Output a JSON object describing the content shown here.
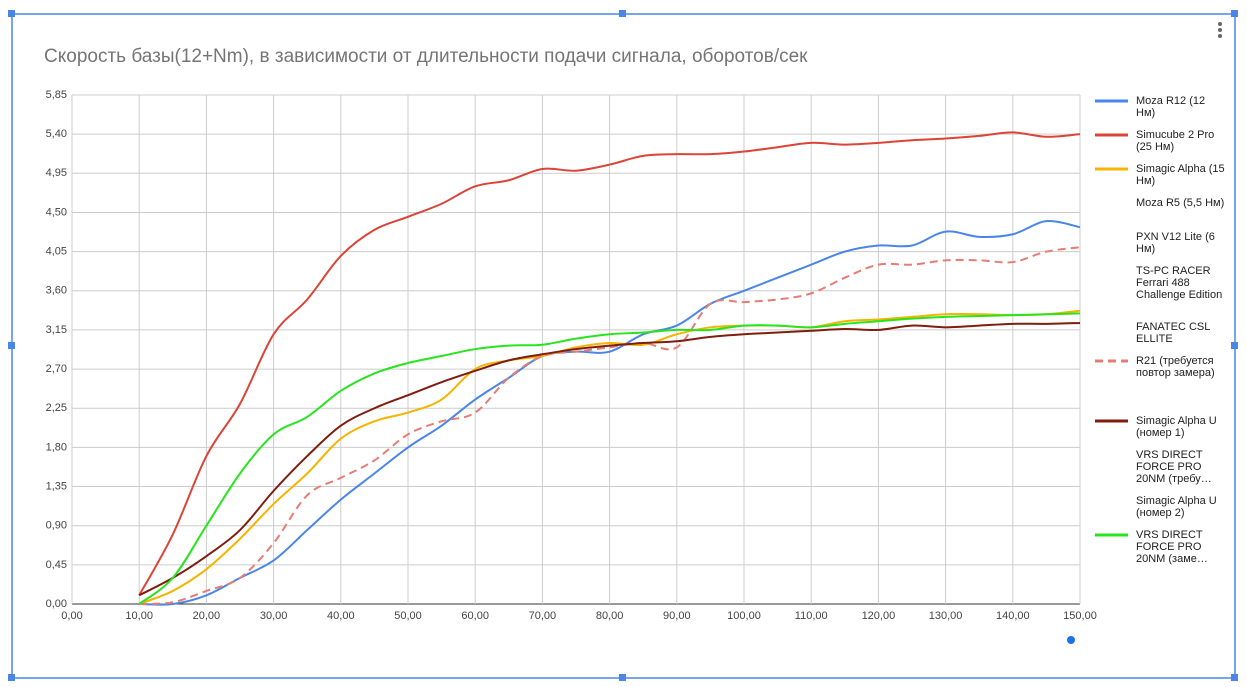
{
  "chart_data": {
    "type": "line",
    "title": "Скорость базы(12+Nm), в зависимости от длительности подачи сигнала, оборотов/сек",
    "x": [
      10,
      15,
      20,
      25,
      30,
      35,
      40,
      45,
      50,
      55,
      60,
      65,
      70,
      75,
      80,
      85,
      90,
      95,
      100,
      105,
      110,
      115,
      120,
      125,
      130,
      135,
      140,
      145,
      150
    ],
    "xlim": [
      0,
      150
    ],
    "xticks": [
      {
        "value": 0,
        "label": "0,00"
      },
      {
        "value": 10,
        "label": "10,00"
      },
      {
        "value": 20,
        "label": "20,00"
      },
      {
        "value": 30,
        "label": "30,00"
      },
      {
        "value": 40,
        "label": "40,00"
      },
      {
        "value": 50,
        "label": "50,00"
      },
      {
        "value": 60,
        "label": "60,00"
      },
      {
        "value": 70,
        "label": "70,00"
      },
      {
        "value": 80,
        "label": "80,00"
      },
      {
        "value": 90,
        "label": "90,00"
      },
      {
        "value": 100,
        "label": "100,00"
      },
      {
        "value": 110,
        "label": "110,00"
      },
      {
        "value": 120,
        "label": "120,00"
      },
      {
        "value": 130,
        "label": "130,00"
      },
      {
        "value": 140,
        "label": "140,00"
      },
      {
        "value": 150,
        "label": "150,00"
      }
    ],
    "ylim": [
      0,
      5.85
    ],
    "yticks": [
      {
        "value": 0,
        "label": "0,00"
      },
      {
        "value": 0.45,
        "label": "0,45"
      },
      {
        "value": 0.9,
        "label": "0,90"
      },
      {
        "value": 1.35,
        "label": "1,35"
      },
      {
        "value": 1.8,
        "label": "1,80"
      },
      {
        "value": 2.25,
        "label": "2,25"
      },
      {
        "value": 2.7,
        "label": "2,70"
      },
      {
        "value": 3.15,
        "label": "3,15"
      },
      {
        "value": 3.6,
        "label": "3,60"
      },
      {
        "value": 4.05,
        "label": "4,05"
      },
      {
        "value": 4.5,
        "label": "4,50"
      },
      {
        "value": 4.95,
        "label": "4,95"
      },
      {
        "value": 5.4,
        "label": "5,40"
      },
      {
        "value": 5.85,
        "label": "5,85"
      }
    ],
    "grid": true,
    "legend": "right",
    "series": [
      {
        "name": "Moza R12 (12 Нм)",
        "color": "#4a86e8",
        "values": [
          0,
          0,
          0.1,
          0.3,
          0.5,
          0.85,
          1.2,
          1.5,
          1.8,
          2.05,
          2.35,
          2.6,
          2.85,
          2.9,
          2.9,
          3.1,
          3.2,
          3.45,
          3.6,
          3.75,
          3.9,
          4.05,
          4.12,
          4.12,
          4.28,
          4.22,
          4.25,
          4.4,
          4.33
        ]
      },
      {
        "name": "Simucube 2 Pro (25 Нм)",
        "color": "#db4437",
        "values": [
          0.1,
          0.8,
          1.7,
          2.3,
          3.1,
          3.5,
          4.0,
          4.3,
          4.45,
          4.6,
          4.8,
          4.87,
          5.0,
          4.98,
          5.05,
          5.15,
          5.17,
          5.17,
          5.2,
          5.25,
          5.3,
          5.28,
          5.3,
          5.33,
          5.35,
          5.38,
          5.42,
          5.37,
          5.4
        ]
      },
      {
        "name": "Simagic Alpha (15 Нм)",
        "color": "#f4b400",
        "values": [
          0,
          0.15,
          0.4,
          0.75,
          1.15,
          1.5,
          1.9,
          2.1,
          2.2,
          2.35,
          2.7,
          2.8,
          2.85,
          2.95,
          3.0,
          2.98,
          3.1,
          3.18,
          3.2,
          3.2,
          3.18,
          3.25,
          3.27,
          3.3,
          3.33,
          3.33,
          3.32,
          3.33,
          3.37
        ]
      },
      {
        "name": "Moza R5 (5,5 Нм)",
        "values": [
          null,
          null,
          null,
          null,
          null,
          null,
          null,
          null,
          null,
          null,
          null,
          null,
          null,
          null,
          null,
          null,
          null,
          null,
          null,
          null,
          null,
          null,
          null,
          null,
          null,
          null,
          null,
          null,
          null
        ]
      },
      {
        "name": "PXN V12 Lite (6 Нм)",
        "values": [
          null,
          null,
          null,
          null,
          null,
          null,
          null,
          null,
          null,
          null,
          null,
          null,
          null,
          null,
          null,
          null,
          null,
          null,
          null,
          null,
          null,
          null,
          null,
          null,
          null,
          null,
          null,
          null,
          null
        ]
      },
      {
        "name": "TS-PC RACER Ferrari 488 Challenge Edition",
        "values": [
          null,
          null,
          null,
          null,
          null,
          null,
          null,
          null,
          null,
          null,
          null,
          null,
          null,
          null,
          null,
          null,
          null,
          null,
          null,
          null,
          null,
          null,
          null,
          null,
          null,
          null,
          null,
          null,
          null
        ]
      },
      {
        "name": "FANATEC CSL ELLITE",
        "values": [
          null,
          null,
          null,
          null,
          null,
          null,
          null,
          null,
          null,
          null,
          null,
          null,
          null,
          null,
          null,
          null,
          null,
          null,
          null,
          null,
          null,
          null,
          null,
          null,
          null,
          null,
          null,
          null,
          null
        ]
      },
      {
        "name": "R21 (требуется повтор замера)",
        "color": "#e67c73",
        "dashed": true,
        "values": [
          0,
          0.02,
          0.15,
          0.3,
          0.7,
          1.25,
          1.45,
          1.65,
          1.95,
          2.1,
          2.2,
          2.6,
          2.85,
          2.9,
          2.95,
          3.0,
          2.95,
          3.45,
          3.47,
          3.5,
          3.57,
          3.75,
          3.9,
          3.9,
          3.95,
          3.95,
          3.93,
          4.05,
          4.1
        ]
      },
      {
        "name": "Simagic Alpha U (номер 1)",
        "color": "#7f1d0e",
        "values": [
          0.1,
          0.3,
          0.55,
          0.85,
          1.3,
          1.7,
          2.05,
          2.25,
          2.4,
          2.55,
          2.68,
          2.8,
          2.87,
          2.93,
          2.97,
          3.0,
          3.02,
          3.07,
          3.1,
          3.12,
          3.14,
          3.16,
          3.15,
          3.2,
          3.18,
          3.2,
          3.22,
          3.22,
          3.23
        ]
      },
      {
        "name": "VRS DIRECT FORCE PRO 20NM (требу…",
        "values": [
          null,
          null,
          null,
          null,
          null,
          null,
          null,
          null,
          null,
          null,
          null,
          null,
          null,
          null,
          null,
          null,
          null,
          null,
          null,
          null,
          null,
          null,
          null,
          null,
          null,
          null,
          null,
          null,
          null
        ]
      },
      {
        "name": "Simagic Alpha U (номер 2)",
        "values": [
          null,
          null,
          null,
          null,
          null,
          null,
          null,
          null,
          null,
          null,
          null,
          null,
          null,
          null,
          null,
          null,
          null,
          null,
          null,
          null,
          null,
          null,
          null,
          null,
          null,
          null,
          null,
          null,
          null
        ]
      },
      {
        "name": "VRS DIRECT FORCE PRO 20NM (заме…",
        "color": "#27e51d",
        "values": [
          0,
          0.3,
          0.9,
          1.5,
          1.95,
          2.15,
          2.45,
          2.65,
          2.77,
          2.85,
          2.93,
          2.97,
          2.98,
          3.05,
          3.1,
          3.12,
          3.15,
          3.15,
          3.2,
          3.2,
          3.18,
          3.22,
          3.25,
          3.28,
          3.3,
          3.31,
          3.32,
          3.33,
          3.34
        ]
      }
    ]
  }
}
